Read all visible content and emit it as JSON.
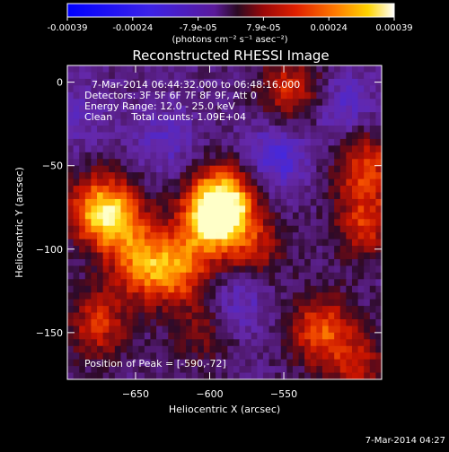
{
  "colorbar": {
    "ticks": [
      "-0.00039",
      "-0.00024",
      "-7.9e-05",
      "7.9e-05",
      "0.00024",
      "0.00039"
    ],
    "unit_label": "(photons cm⁻² s⁻¹ asec⁻²)"
  },
  "image_title": "Reconstructed RHESSI Image",
  "info": {
    "time_range": "7-Mar-2014 06:44:32.000 to 06:48:16.000",
    "detectors": "Detectors: 3F 5F 6F 7F 8F 9F, Att 0",
    "energy_range": "Energy Range: 12.0 - 25.0 keV",
    "clean_counts": "Clean      Total counts: 1.09E+04",
    "peak": "Position of Peak = [-590,-72]"
  },
  "footer_timestamp": "7-Mar-2014 04:27",
  "colors": {
    "background": "#000000",
    "text": "#ffffff"
  },
  "chart_data": {
    "type": "heatmap",
    "title": "Reconstructed RHESSI Image",
    "xlabel": "Heliocentric X (arcsec)",
    "ylabel": "Heliocentric Y (arcsec)",
    "xlim": [
      -696,
      -484
    ],
    "ylim": [
      -178,
      10
    ],
    "x_ticks": [
      -650,
      -600,
      -550
    ],
    "y_ticks": [
      0,
      -50,
      -100,
      -150
    ],
    "colorscale": "blue-purple-red-yellow-white",
    "value_range": [
      -0.00039,
      0.00039
    ],
    "peak_position": [
      -590,
      -72
    ],
    "pixel_size_arcsec": 4,
    "features": [
      {
        "x": -590,
        "y": -72,
        "level": 1.0
      },
      {
        "x": -600,
        "y": -82,
        "level": 0.8
      },
      {
        "x": -663,
        "y": -82,
        "level": 0.75
      },
      {
        "x": -645,
        "y": -110,
        "level": 0.7
      },
      {
        "x": -620,
        "y": -112,
        "level": 0.65
      },
      {
        "x": -678,
        "y": -75,
        "level": 0.6
      },
      {
        "x": -675,
        "y": -145,
        "level": 0.55
      },
      {
        "x": -570,
        "y": -100,
        "level": 0.45
      },
      {
        "x": -525,
        "y": -148,
        "level": 0.65
      },
      {
        "x": -500,
        "y": -170,
        "level": 0.45
      },
      {
        "x": -495,
        "y": -50,
        "level": 0.6
      },
      {
        "x": -495,
        "y": -85,
        "level": 0.55
      },
      {
        "x": -545,
        "y": -5,
        "level": 0.55
      },
      {
        "x": -605,
        "y": -150,
        "level": 0.3
      },
      {
        "x": -555,
        "y": -45,
        "level": -0.4
      },
      {
        "x": -510,
        "y": -15,
        "level": -0.3
      },
      {
        "x": -630,
        "y": -35,
        "level": -0.25
      },
      {
        "x": -580,
        "y": -130,
        "level": -0.3
      },
      {
        "x": -690,
        "y": -20,
        "level": -0.2
      }
    ]
  }
}
